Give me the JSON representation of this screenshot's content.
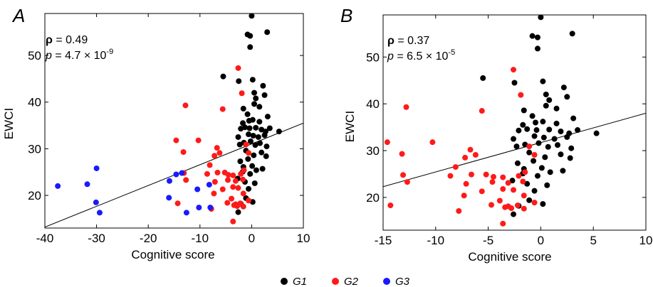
{
  "legend": [
    {
      "name": "G1",
      "color": "#000000"
    },
    {
      "name": "G2",
      "color": "#ff1a1a"
    },
    {
      "name": "G3",
      "color": "#1a1aff"
    }
  ],
  "chart_data": [
    {
      "type": "scatter",
      "panel_label": "A",
      "xlabel": "Cognitive score",
      "ylabel": "EWCI",
      "xlim": [
        -40,
        10
      ],
      "ylim": [
        13,
        59
      ],
      "xticks": [
        -40,
        -30,
        -20,
        -10,
        0,
        10
      ],
      "yticks": [
        20,
        30,
        40,
        50
      ],
      "stats": {
        "rho_label": "ρ",
        "rho_value": " = 0.49",
        "p_label": "p",
        "p_base": " = 4.7 × 10",
        "p_exp": "-9"
      },
      "trendline": {
        "x": [
          -40,
          10
        ],
        "y": [
          13.2,
          35.5
        ]
      },
      "series": [
        {
          "name": "G1",
          "color": "#000000",
          "points": [
            [
              0,
              58.5
            ],
            [
              -0.8,
              54.5
            ],
            [
              -0.3,
              54.2
            ],
            [
              3,
              55
            ],
            [
              -0.3,
              51.8
            ],
            [
              -5.5,
              45.5
            ],
            [
              -2.5,
              44.5
            ],
            [
              0.2,
              44.8
            ],
            [
              2.2,
              43.5
            ],
            [
              0.5,
              42
            ],
            [
              0.8,
              40.8
            ],
            [
              2.5,
              41.5
            ],
            [
              -1.6,
              38.6
            ],
            [
              0.5,
              39.6
            ],
            [
              1.5,
              39
            ],
            [
              -0.8,
              37.4
            ],
            [
              -1.7,
              35.5
            ],
            [
              -0.5,
              36
            ],
            [
              0.2,
              36.2
            ],
            [
              1.5,
              35.8
            ],
            [
              3.1,
              36.9
            ],
            [
              -2.1,
              34.3
            ],
            [
              -1.3,
              34.6
            ],
            [
              -0.4,
              34.4
            ],
            [
              0.8,
              34.5
            ],
            [
              1.9,
              34.1
            ],
            [
              2.7,
              33.7
            ],
            [
              3.5,
              34.4
            ],
            [
              5.3,
              33.7
            ],
            [
              -2.6,
              32.5
            ],
            [
              -0.6,
              33.1
            ],
            [
              0.3,
              32.8
            ],
            [
              1.3,
              32.5
            ],
            [
              2.5,
              32.9
            ],
            [
              -2.3,
              30.9
            ],
            [
              -1.5,
              31.3
            ],
            [
              -0.2,
              31.6
            ],
            [
              0.7,
              30.8
            ],
            [
              1.6,
              31.2
            ],
            [
              2.9,
              30.5
            ],
            [
              -1.1,
              29.6
            ],
            [
              0.4,
              28.6
            ],
            [
              1.9,
              29.2
            ],
            [
              2.8,
              28.4
            ],
            [
              -2.2,
              27.3
            ],
            [
              -0.7,
              27.8
            ],
            [
              -1.6,
              26.1
            ],
            [
              0.1,
              26.3
            ],
            [
              0.9,
              25.4
            ],
            [
              2.1,
              25.7
            ],
            [
              -0.3,
              24.6
            ],
            [
              -2.7,
              23.6
            ],
            [
              -1.3,
              22.9
            ],
            [
              0.6,
              22.6
            ],
            [
              -0.6,
              21.4
            ],
            [
              -2.1,
              18.2
            ],
            [
              -1.1,
              19.4
            ],
            [
              -2.6,
              16.4
            ],
            [
              0.2,
              18.6
            ],
            [
              -1.7,
              25.1
            ]
          ]
        },
        {
          "name": "G2",
          "color": "#ff1a1a",
          "points": [
            [
              -2.6,
              47.3
            ],
            [
              -12.8,
              39.3
            ],
            [
              -5.6,
              38.5
            ],
            [
              -14.6,
              31.8
            ],
            [
              -10.3,
              31.8
            ],
            [
              -13.2,
              29.3
            ],
            [
              -6.7,
              30.2
            ],
            [
              -7.2,
              28.5
            ],
            [
              -6.2,
              29.1
            ],
            [
              -1.1,
              30.9
            ],
            [
              -0.6,
              29.1
            ],
            [
              -8.1,
              26.5
            ],
            [
              -13.1,
              24.8
            ],
            [
              -8.6,
              24.6
            ],
            [
              -6.6,
              24.9
            ],
            [
              -5.2,
              24.9
            ],
            [
              -4.5,
              24.4
            ],
            [
              -3.6,
              24.3
            ],
            [
              -2.1,
              24.6
            ],
            [
              -1.5,
              25.4
            ],
            [
              -7.1,
              22.9
            ],
            [
              -4.6,
              23.3
            ],
            [
              -3.1,
              23.1
            ],
            [
              -1.7,
              23.4
            ],
            [
              -5.6,
              21.3
            ],
            [
              -3.6,
              21.8
            ],
            [
              -2.6,
              21.6
            ],
            [
              -7.3,
              20.4
            ],
            [
              -1.6,
              20.4
            ],
            [
              -3.9,
              19.3
            ],
            [
              -4.7,
              18.4
            ],
            [
              -3.1,
              18.1
            ],
            [
              -2.2,
              18.3
            ],
            [
              -1.6,
              17.6
            ],
            [
              -2.8,
              17.7
            ],
            [
              -7.8,
              17.1
            ],
            [
              -14.3,
              18.3
            ],
            [
              -3.6,
              14.4
            ],
            [
              -0.6,
              18.9
            ],
            [
              -3.4,
              17.9
            ],
            [
              -1.9,
              41.9
            ],
            [
              -12.7,
              23.3
            ]
          ]
        },
        {
          "name": "G3",
          "color": "#1a1aff",
          "points": [
            [
              -37.5,
              22
            ],
            [
              -31.8,
              22.4
            ],
            [
              -30,
              25.8
            ],
            [
              -30.1,
              18.5
            ],
            [
              -29.4,
              16.3
            ],
            [
              -15.9,
              23.1
            ],
            [
              -13.5,
              24.8
            ],
            [
              -16,
              19.5
            ],
            [
              -10.5,
              21.3
            ],
            [
              -8.2,
              22.3
            ],
            [
              -10.2,
              17.4
            ],
            [
              -12.6,
              16.3
            ],
            [
              -8,
              17.4
            ],
            [
              -14.6,
              24.5
            ]
          ]
        }
      ]
    },
    {
      "type": "scatter",
      "panel_label": "B",
      "xlabel": "Cognitive score",
      "ylabel": "EWCI",
      "xlim": [
        -15,
        10
      ],
      "ylim": [
        13,
        59
      ],
      "xticks": [
        -15,
        -10,
        -5,
        0,
        5,
        10
      ],
      "yticks": [
        20,
        30,
        40,
        50
      ],
      "stats": {
        "rho_label": "ρ",
        "rho_value": " = 0.37",
        "p_label": "p",
        "p_base": " = 6.5 × 10",
        "p_exp": "-5"
      },
      "trendline": {
        "x": [
          -15,
          10
        ],
        "y": [
          22.3,
          38
        ]
      },
      "series": [
        {
          "name": "G1",
          "color": "#000000",
          "points": [
            [
              0,
              58.5
            ],
            [
              -0.8,
              54.5
            ],
            [
              -0.3,
              54.2
            ],
            [
              3,
              55
            ],
            [
              -0.3,
              51.8
            ],
            [
              -5.5,
              45.5
            ],
            [
              -2.5,
              44.5
            ],
            [
              0.2,
              44.8
            ],
            [
              2.2,
              43.5
            ],
            [
              0.5,
              42
            ],
            [
              0.8,
              40.8
            ],
            [
              2.5,
              41.5
            ],
            [
              -1.6,
              38.6
            ],
            [
              0.5,
              39.6
            ],
            [
              1.5,
              39
            ],
            [
              -0.8,
              37.4
            ],
            [
              -1.7,
              35.5
            ],
            [
              -0.5,
              36
            ],
            [
              0.2,
              36.2
            ],
            [
              1.5,
              35.8
            ],
            [
              3.1,
              36.9
            ],
            [
              -2.1,
              34.3
            ],
            [
              -1.3,
              34.6
            ],
            [
              -0.4,
              34.4
            ],
            [
              0.8,
              34.5
            ],
            [
              1.9,
              34.1
            ],
            [
              2.7,
              33.7
            ],
            [
              3.5,
              34.4
            ],
            [
              5.3,
              33.7
            ],
            [
              -2.6,
              32.5
            ],
            [
              -0.6,
              33.1
            ],
            [
              0.3,
              32.8
            ],
            [
              1.3,
              32.5
            ],
            [
              2.5,
              32.9
            ],
            [
              -2.3,
              30.9
            ],
            [
              -1.5,
              31.3
            ],
            [
              -0.2,
              31.6
            ],
            [
              0.7,
              30.8
            ],
            [
              1.6,
              31.2
            ],
            [
              2.9,
              30.5
            ],
            [
              -1.1,
              29.6
            ],
            [
              0.4,
              28.6
            ],
            [
              1.9,
              29.2
            ],
            [
              2.8,
              28.4
            ],
            [
              -2.2,
              27.3
            ],
            [
              -0.7,
              27.8
            ],
            [
              -1.6,
              26.1
            ],
            [
              0.1,
              26.3
            ],
            [
              0.9,
              25.4
            ],
            [
              2.1,
              25.7
            ],
            [
              -0.3,
              24.6
            ],
            [
              -2.7,
              23.6
            ],
            [
              -1.3,
              22.9
            ],
            [
              0.6,
              22.6
            ],
            [
              -0.6,
              21.4
            ],
            [
              -2.1,
              18.2
            ],
            [
              -1.1,
              19.4
            ],
            [
              -2.6,
              16.4
            ],
            [
              0.2,
              18.6
            ],
            [
              -1.7,
              25.1
            ]
          ]
        },
        {
          "name": "G2",
          "color": "#ff1a1a",
          "points": [
            [
              -2.6,
              47.3
            ],
            [
              -12.8,
              39.3
            ],
            [
              -5.6,
              38.5
            ],
            [
              -14.6,
              31.8
            ],
            [
              -10.3,
              31.8
            ],
            [
              -13.2,
              29.3
            ],
            [
              -6.7,
              30.2
            ],
            [
              -7.2,
              28.5
            ],
            [
              -6.2,
              29.1
            ],
            [
              -1.1,
              30.9
            ],
            [
              -0.6,
              29.1
            ],
            [
              -8.1,
              26.5
            ],
            [
              -13.1,
              24.8
            ],
            [
              -8.6,
              24.6
            ],
            [
              -6.6,
              24.9
            ],
            [
              -5.2,
              24.9
            ],
            [
              -4.5,
              24.4
            ],
            [
              -3.6,
              24.3
            ],
            [
              -2.1,
              24.6
            ],
            [
              -1.5,
              25.4
            ],
            [
              -7.1,
              22.9
            ],
            [
              -4.6,
              23.3
            ],
            [
              -3.1,
              23.1
            ],
            [
              -1.7,
              23.4
            ],
            [
              -5.6,
              21.3
            ],
            [
              -3.6,
              21.8
            ],
            [
              -2.6,
              21.6
            ],
            [
              -7.3,
              20.4
            ],
            [
              -1.6,
              20.4
            ],
            [
              -3.9,
              19.3
            ],
            [
              -4.7,
              18.4
            ],
            [
              -3.1,
              18.1
            ],
            [
              -2.2,
              18.3
            ],
            [
              -1.6,
              17.6
            ],
            [
              -2.8,
              17.7
            ],
            [
              -7.8,
              17.1
            ],
            [
              -14.3,
              18.3
            ],
            [
              -3.6,
              14.4
            ],
            [
              -0.6,
              18.9
            ],
            [
              -3.4,
              17.9
            ],
            [
              -1.9,
              41.9
            ],
            [
              -12.7,
              23.3
            ]
          ]
        }
      ]
    }
  ]
}
